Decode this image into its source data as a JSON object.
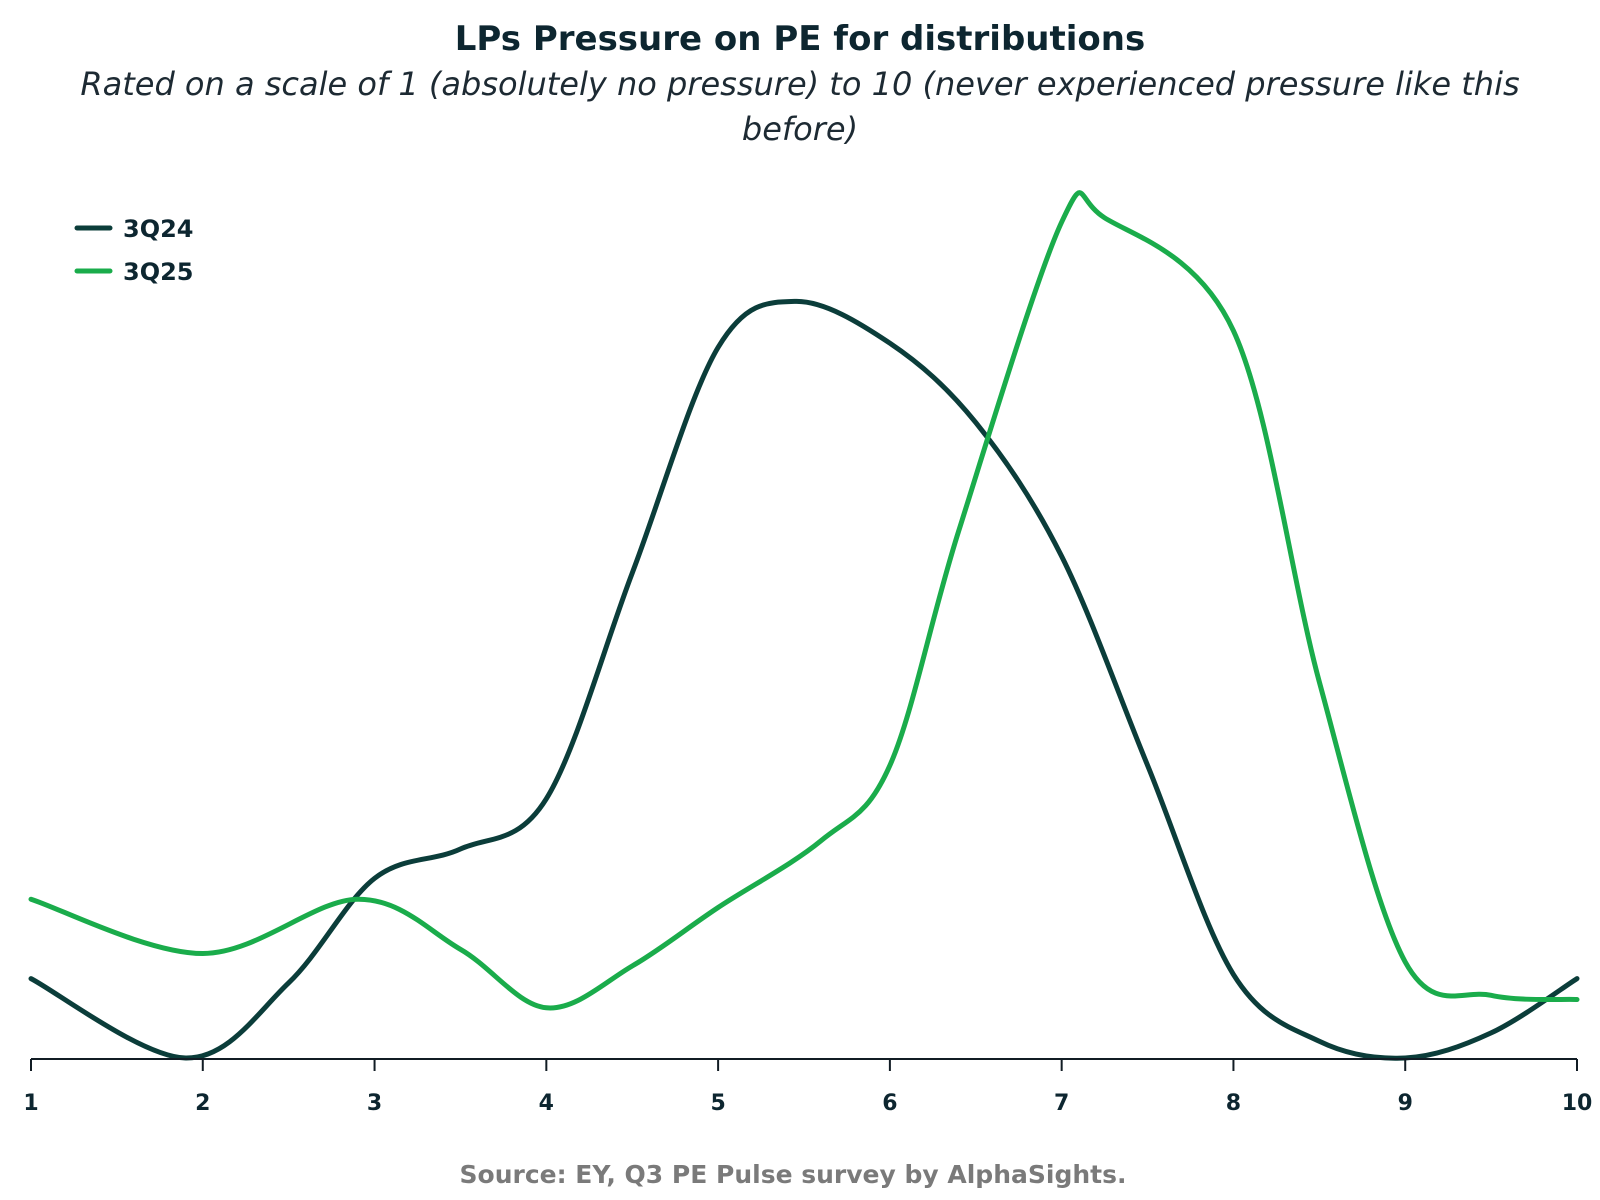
{
  "chart_data": {
    "type": "line",
    "title": "LPs Pressure on PE for distributions",
    "subtitle_lines": [
      "Rated on a scale of 1 (absolutely no pressure) to 10 (never experienced pressure like this",
      "before)"
    ],
    "x": [
      1,
      2,
      3,
      4,
      5,
      6,
      7,
      8,
      9,
      10
    ],
    "xlim": [
      1,
      10
    ],
    "ylim": [
      0,
      1
    ],
    "grid": false,
    "legend_position": "top-left",
    "series": [
      {
        "name": "3Q24",
        "color": "#0b3d3a",
        "points": [
          [
            1,
            0.095
          ],
          [
            1.9,
            0.0
          ],
          [
            2.5,
            0.09
          ],
          [
            3,
            0.215
          ],
          [
            3.5,
            0.25
          ],
          [
            4,
            0.31
          ],
          [
            4.5,
            0.58
          ],
          [
            5,
            0.85
          ],
          [
            5.45,
            0.905
          ],
          [
            6,
            0.855
          ],
          [
            6.5,
            0.76
          ],
          [
            7,
            0.6
          ],
          [
            7.5,
            0.35
          ],
          [
            8,
            0.1
          ],
          [
            8.5,
            0.02
          ],
          [
            9,
            0.0
          ],
          [
            9.5,
            0.03
          ],
          [
            10,
            0.095
          ]
        ]
      },
      {
        "name": "3Q25",
        "color": "#1aac4b",
        "points": [
          [
            1,
            0.19
          ],
          [
            2,
            0.125
          ],
          [
            2.9,
            0.19
          ],
          [
            3.5,
            0.13
          ],
          [
            4,
            0.06
          ],
          [
            4.5,
            0.11
          ],
          [
            5,
            0.18
          ],
          [
            5.6,
            0.26
          ],
          [
            6,
            0.35
          ],
          [
            6.4,
            0.63
          ],
          [
            7,
            1.0
          ],
          [
            7.25,
            1.005
          ],
          [
            8,
            0.87
          ],
          [
            8.5,
            0.45
          ],
          [
            9,
            0.115
          ],
          [
            9.5,
            0.075
          ],
          [
            10,
            0.07
          ]
        ]
      }
    ]
  },
  "source_text": "Source: EY, Q3 PE Pulse survey by AlphaSights."
}
